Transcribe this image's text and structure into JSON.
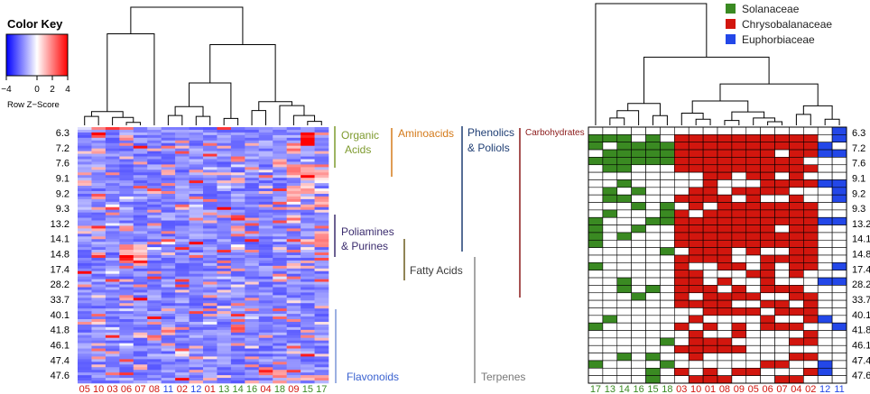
{
  "chart_data": {
    "type": "heatmap",
    "color_key": {
      "title": "Color Key",
      "xlabel": "Row Z−Score",
      "ticks": [
        "−4",
        "0",
        "2",
        "4"
      ],
      "range": [
        -4,
        4
      ],
      "colors": {
        "low": "#0000FF",
        "mid": "#FFFFFF",
        "high": "#FF0000"
      }
    },
    "row_labels": [
      "6.3",
      "7.2",
      "7.6",
      "9.1",
      "9.2",
      "9.3",
      "13.2",
      "14.1",
      "14.8",
      "17.4",
      "28.2",
      "33.7",
      "40.1",
      "41.8",
      "46.1",
      "47.4",
      "47.6"
    ],
    "heatmap_columns": [
      {
        "label": "05",
        "family": "Chrysobalanaceae"
      },
      {
        "label": "10",
        "family": "Chrysobalanaceae"
      },
      {
        "label": "03",
        "family": "Chrysobalanaceae"
      },
      {
        "label": "06",
        "family": "Chrysobalanaceae"
      },
      {
        "label": "07",
        "family": "Chrysobalanaceae"
      },
      {
        "label": "08",
        "family": "Chrysobalanaceae"
      },
      {
        "label": "11",
        "family": "Euphorbiaceae"
      },
      {
        "label": "02",
        "family": "Chrysobalanaceae"
      },
      {
        "label": "12",
        "family": "Euphorbiaceae"
      },
      {
        "label": "01",
        "family": "Chrysobalanaceae"
      },
      {
        "label": "13",
        "family": "Solanaceae"
      },
      {
        "label": "14",
        "family": "Solanaceae"
      },
      {
        "label": "16",
        "family": "Solanaceae"
      },
      {
        "label": "04",
        "family": "Chrysobalanaceae"
      },
      {
        "label": "18",
        "family": "Solanaceae"
      },
      {
        "label": "09",
        "family": "Chrysobalanaceae"
      },
      {
        "label": "15",
        "family": "Solanaceae"
      },
      {
        "label": "17",
        "family": "Solanaceae"
      }
    ],
    "presence_columns": [
      {
        "label": "17",
        "family": "Solanaceae"
      },
      {
        "label": "13",
        "family": "Solanaceae"
      },
      {
        "label": "14",
        "family": "Solanaceae"
      },
      {
        "label": "16",
        "family": "Solanaceae"
      },
      {
        "label": "15",
        "family": "Solanaceae"
      },
      {
        "label": "18",
        "family": "Solanaceae"
      },
      {
        "label": "03",
        "family": "Chrysobalanaceae"
      },
      {
        "label": "10",
        "family": "Chrysobalanaceae"
      },
      {
        "label": "01",
        "family": "Chrysobalanaceae"
      },
      {
        "label": "08",
        "family": "Chrysobalanaceae"
      },
      {
        "label": "09",
        "family": "Chrysobalanaceae"
      },
      {
        "label": "05",
        "family": "Chrysobalanaceae"
      },
      {
        "label": "06",
        "family": "Chrysobalanaceae"
      },
      {
        "label": "07",
        "family": "Chrysobalanaceae"
      },
      {
        "label": "04",
        "family": "Chrysobalanaceae"
      },
      {
        "label": "02",
        "family": "Chrysobalanaceae"
      },
      {
        "label": "12",
        "family": "Euphorbiaceae"
      },
      {
        "label": "11",
        "family": "Euphorbiaceae"
      }
    ],
    "legend": [
      {
        "name": "Solanaceae",
        "color": "#3A8A22"
      },
      {
        "name": "Chrysobalanaceae",
        "color": "#D2160E"
      },
      {
        "name": "Euphorbiaceae",
        "color": "#2347E8"
      }
    ],
    "compound_classes": [
      {
        "name": "Organic Acids",
        "lines": [
          "Organic",
          "Acids"
        ],
        "color": "#7E9A2E"
      },
      {
        "name": "Aminoacids",
        "lines": [
          "Aminoacids"
        ],
        "color": "#D47A1A"
      },
      {
        "name": "Phenolics & Poliols",
        "lines": [
          "Phenolics",
          "& Poliols"
        ],
        "color": "#1F3E74"
      },
      {
        "name": "Carbohydrates",
        "lines": [
          "Carbohydrates"
        ],
        "color": "#8B1A1A"
      },
      {
        "name": "Poliamines & Purines",
        "lines": [
          "Poliamines",
          "& Purines"
        ],
        "color": "#3B2C6E"
      },
      {
        "name": "Fatty Acids",
        "lines": [
          "Fatty Acids"
        ],
        "color": "#6B5A1E"
      },
      {
        "name": "Flavonoids",
        "lines": [
          "Flavonoids"
        ],
        "color": "#3A62D0"
      },
      {
        "name": "Terpenes",
        "lines": [
          "Terpenes"
        ],
        "color": "#777777"
      }
    ],
    "presence_row_count": 34,
    "absent_color": "#FFFFFF"
  }
}
